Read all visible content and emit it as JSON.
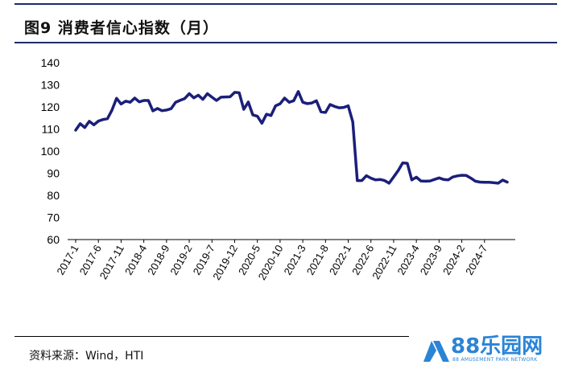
{
  "header": {
    "title": "图9  消费者信心指数（月）"
  },
  "footer": {
    "source": "资料来源：Wind，HTI"
  },
  "watermark": {
    "logo_text": "88乐园网",
    "sub_text": "88 AMUSEMENT PARK NETWORK",
    "color": "#2a84d6"
  },
  "chart_data": {
    "type": "line",
    "title": "",
    "xlabel": "",
    "ylabel": "",
    "ylim": [
      60,
      140
    ],
    "yticks": [
      60,
      70,
      80,
      90,
      100,
      110,
      120,
      130,
      140
    ],
    "grid": false,
    "line_color": "#1b1f7a",
    "x_tick_labels": [
      "2017-1",
      "2017-6",
      "2017-11",
      "2018-4",
      "2018-9",
      "2019-2",
      "2019-7",
      "2019-12",
      "2020-5",
      "2020-10",
      "2021-3",
      "2021-8",
      "2022-1",
      "2022-6",
      "2022-11",
      "2023-4",
      "2023-9",
      "2024-2",
      "2024-7"
    ],
    "series": [
      {
        "name": "",
        "start": "2017-01",
        "values": [
          109.5,
          112.4,
          110.7,
          113.5,
          111.9,
          113.6,
          114.3,
          114.7,
          118.6,
          123.9,
          121.3,
          122.6,
          122.1,
          124.0,
          122.3,
          122.9,
          122.9,
          118.2,
          119.3,
          118.3,
          118.6,
          119.2,
          122.1,
          123.0,
          123.8,
          126.0,
          124.1,
          125.3,
          123.4,
          126.0,
          124.4,
          122.9,
          124.4,
          124.5,
          124.6,
          126.6,
          126.4,
          118.9,
          122.2,
          116.4,
          115.8,
          112.6,
          116.7,
          116.1,
          120.5,
          121.4,
          124.0,
          122.1,
          122.8,
          127.0,
          122.1,
          121.5,
          121.8,
          122.8,
          117.8,
          117.5,
          121.1,
          120.2,
          119.6,
          119.8,
          120.5,
          113.2,
          86.7,
          86.7,
          88.9,
          87.8,
          87.0,
          87.2,
          86.7,
          85.5,
          88.3,
          91.2,
          94.7,
          94.5,
          87.0,
          88.2,
          86.5,
          86.4,
          86.5,
          87.2,
          87.9,
          87.2,
          87.0,
          88.3,
          88.8,
          89.1,
          89.0,
          87.8,
          86.4,
          86.0,
          85.9,
          85.9,
          85.7,
          85.5,
          86.9,
          86.0
        ]
      }
    ]
  }
}
